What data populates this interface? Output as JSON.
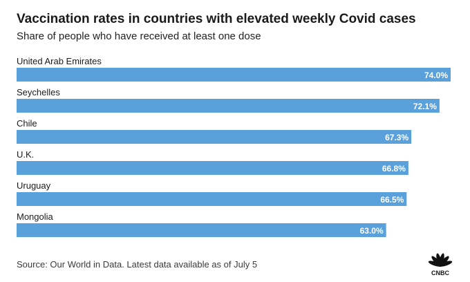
{
  "title": "Vaccination rates in countries with elevated weekly Covid cases",
  "subtitle": "Share of people who have received at least one dose",
  "source": "Source: Our World in Data. Latest data available as of July 5",
  "logo_text": "CNBC",
  "bar_color": "#5aa1dc",
  "chart_data": {
    "type": "bar",
    "orientation": "horizontal",
    "categories": [
      "United Arab Emirates",
      "Seychelles",
      "Chile",
      "U.K.",
      "Uruguay",
      "Mongolia"
    ],
    "values": [
      74.0,
      72.1,
      67.3,
      66.8,
      66.5,
      63.0
    ],
    "value_labels": [
      "74.0%",
      "72.1%",
      "67.3%",
      "66.8%",
      "66.5%",
      "63.0%"
    ],
    "unit": "%",
    "xlim": [
      0,
      74.0
    ],
    "grid": false,
    "legend": "none"
  }
}
